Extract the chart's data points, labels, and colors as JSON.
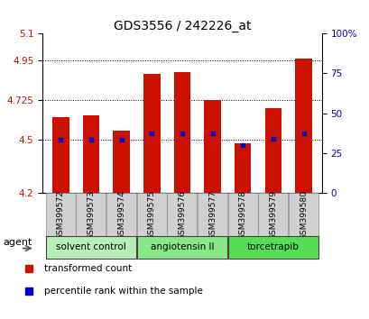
{
  "title": "GDS3556 / 242226_at",
  "samples": [
    "GSM399572",
    "GSM399573",
    "GSM399574",
    "GSM399575",
    "GSM399576",
    "GSM399577",
    "GSM399578",
    "GSM399579",
    "GSM399580"
  ],
  "red_values": [
    4.63,
    4.64,
    4.55,
    4.87,
    4.88,
    4.725,
    4.48,
    4.68,
    4.96
  ],
  "blue_values": [
    4.5,
    4.5,
    4.5,
    4.535,
    4.535,
    4.535,
    4.47,
    4.505,
    4.535
  ],
  "ylim_left": [
    4.2,
    5.1
  ],
  "yticks_left": [
    4.2,
    4.5,
    4.725,
    4.95,
    5.1
  ],
  "ytick_labels_left": [
    "4.2",
    "4.5",
    "4.725",
    "4.95",
    "5.1"
  ],
  "ylim_right": [
    0,
    100
  ],
  "yticks_right": [
    0,
    25,
    50,
    75,
    100
  ],
  "ytick_labels_right": [
    "0",
    "25",
    "50",
    "75",
    "100%"
  ],
  "groups": [
    {
      "label": "solvent control",
      "samples": [
        0,
        1,
        2
      ],
      "color": "#b8eeb8"
    },
    {
      "label": "angiotensin II",
      "samples": [
        3,
        4,
        5
      ],
      "color": "#88e888"
    },
    {
      "label": "torcetrapib",
      "samples": [
        6,
        7,
        8
      ],
      "color": "#55dd55"
    }
  ],
  "bar_color": "#cc1100",
  "dot_color": "#0000cc",
  "bar_width": 0.55,
  "bar_bottom": 4.2,
  "legend_red": "transformed count",
  "legend_blue": "percentile rank within the sample",
  "xlabel_agent": "agent",
  "grid_color": "#000000",
  "tick_label_color_left": "#cc1100",
  "tick_label_color_right": "#0000cc",
  "bg_xticklabels": "#d0d0d0"
}
